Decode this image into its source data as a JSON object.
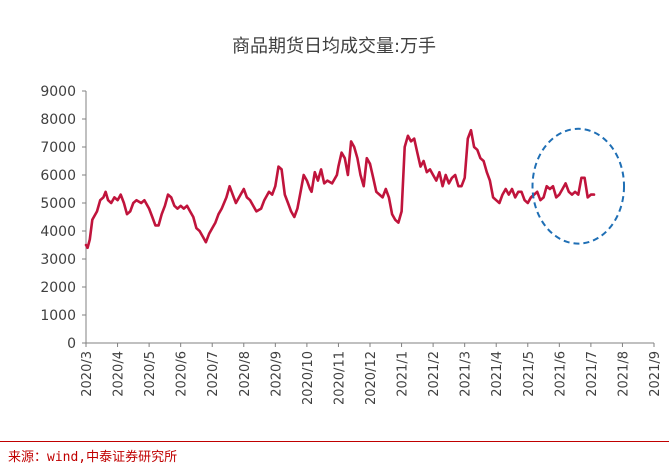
{
  "chart_data": {
    "type": "line",
    "title": "商品期货日均成交量:万手",
    "xlabel": "",
    "ylabel": "",
    "ylim": [
      0,
      9000
    ],
    "yticks": [
      0,
      1000,
      2000,
      3000,
      4000,
      5000,
      6000,
      7000,
      8000,
      9000
    ],
    "categories": [
      "2020/3",
      "2020/4",
      "2020/5",
      "2020/6",
      "2020/7",
      "2020/8",
      "2020/9",
      "2020/10",
      "2020/11",
      "2020/12",
      "2021/1",
      "2021/2",
      "2021/3",
      "2021/4",
      "2021/5",
      "2021/6",
      "2021/7",
      "2021/8",
      "2021/9"
    ],
    "series": [
      {
        "color": "#c0143c",
        "values": [
          [
            0.0,
            3500
          ],
          [
            0.05,
            3400
          ],
          [
            0.12,
            3700
          ],
          [
            0.2,
            4400
          ],
          [
            0.35,
            4700
          ],
          [
            0.45,
            5100
          ],
          [
            0.55,
            5200
          ],
          [
            0.62,
            5400
          ],
          [
            0.7,
            5100
          ],
          [
            0.8,
            5000
          ],
          [
            0.9,
            5200
          ],
          [
            1.0,
            5100
          ],
          [
            1.1,
            5300
          ],
          [
            1.2,
            5000
          ],
          [
            1.3,
            4600
          ],
          [
            1.4,
            4700
          ],
          [
            1.5,
            5000
          ],
          [
            1.6,
            5100
          ],
          [
            1.75,
            5000
          ],
          [
            1.85,
            5100
          ],
          [
            2.0,
            4800
          ],
          [
            2.1,
            4500
          ],
          [
            2.2,
            4200
          ],
          [
            2.3,
            4200
          ],
          [
            2.4,
            4600
          ],
          [
            2.5,
            4900
          ],
          [
            2.6,
            5300
          ],
          [
            2.7,
            5200
          ],
          [
            2.8,
            4900
          ],
          [
            2.9,
            4800
          ],
          [
            3.0,
            4900
          ],
          [
            3.1,
            4800
          ],
          [
            3.2,
            4900
          ],
          [
            3.3,
            4700
          ],
          [
            3.4,
            4500
          ],
          [
            3.5,
            4100
          ],
          [
            3.6,
            4000
          ],
          [
            3.7,
            3800
          ],
          [
            3.8,
            3600
          ],
          [
            3.9,
            3900
          ],
          [
            4.0,
            4100
          ],
          [
            4.1,
            4300
          ],
          [
            4.2,
            4600
          ],
          [
            4.3,
            4800
          ],
          [
            4.45,
            5200
          ],
          [
            4.55,
            5600
          ],
          [
            4.65,
            5300
          ],
          [
            4.75,
            5000
          ],
          [
            4.9,
            5300
          ],
          [
            5.0,
            5500
          ],
          [
            5.1,
            5200
          ],
          [
            5.2,
            5100
          ],
          [
            5.3,
            4900
          ],
          [
            5.4,
            4700
          ],
          [
            5.55,
            4800
          ],
          [
            5.65,
            5100
          ],
          [
            5.8,
            5400
          ],
          [
            5.9,
            5300
          ],
          [
            6.0,
            5600
          ],
          [
            6.1,
            6300
          ],
          [
            6.2,
            6200
          ],
          [
            6.3,
            5300
          ],
          [
            6.4,
            5000
          ],
          [
            6.5,
            4700
          ],
          [
            6.6,
            4500
          ],
          [
            6.7,
            4800
          ],
          [
            6.8,
            5400
          ],
          [
            6.9,
            6000
          ],
          [
            7.0,
            5800
          ],
          [
            7.1,
            5500
          ],
          [
            7.15,
            5400
          ],
          [
            7.25,
            6100
          ],
          [
            7.35,
            5800
          ],
          [
            7.45,
            6200
          ],
          [
            7.55,
            5700
          ],
          [
            7.65,
            5800
          ],
          [
            7.8,
            5700
          ],
          [
            7.95,
            6000
          ],
          [
            8.0,
            6300
          ],
          [
            8.1,
            6800
          ],
          [
            8.2,
            6600
          ],
          [
            8.3,
            6000
          ],
          [
            8.4,
            7200
          ],
          [
            8.5,
            7000
          ],
          [
            8.6,
            6600
          ],
          [
            8.7,
            6000
          ],
          [
            8.8,
            5600
          ],
          [
            8.9,
            6600
          ],
          [
            9.0,
            6400
          ],
          [
            9.1,
            5900
          ],
          [
            9.2,
            5400
          ],
          [
            9.3,
            5300
          ],
          [
            9.4,
            5200
          ],
          [
            9.5,
            5500
          ],
          [
            9.6,
            5200
          ],
          [
            9.7,
            4600
          ],
          [
            9.8,
            4400
          ],
          [
            9.9,
            4300
          ],
          [
            10.0,
            4700
          ],
          [
            10.1,
            7000
          ],
          [
            10.2,
            7400
          ],
          [
            10.3,
            7200
          ],
          [
            10.4,
            7300
          ],
          [
            10.5,
            6800
          ],
          [
            10.6,
            6300
          ],
          [
            10.7,
            6500
          ],
          [
            10.8,
            6100
          ],
          [
            10.9,
            6200
          ],
          [
            11.0,
            6000
          ],
          [
            11.1,
            5800
          ],
          [
            11.2,
            6100
          ],
          [
            11.3,
            5600
          ],
          [
            11.4,
            6000
          ],
          [
            11.5,
            5700
          ],
          [
            11.6,
            5900
          ],
          [
            11.7,
            6000
          ],
          [
            11.8,
            5600
          ],
          [
            11.9,
            5600
          ],
          [
            12.0,
            5900
          ],
          [
            12.1,
            7300
          ],
          [
            12.2,
            7600
          ],
          [
            12.3,
            7000
          ],
          [
            12.4,
            6900
          ],
          [
            12.5,
            6600
          ],
          [
            12.6,
            6500
          ],
          [
            12.7,
            6100
          ],
          [
            12.8,
            5800
          ],
          [
            12.9,
            5200
          ],
          [
            13.0,
            5100
          ],
          [
            13.1,
            5000
          ],
          [
            13.2,
            5300
          ],
          [
            13.3,
            5500
          ],
          [
            13.4,
            5300
          ],
          [
            13.5,
            5500
          ],
          [
            13.6,
            5200
          ],
          [
            13.7,
            5400
          ],
          [
            13.8,
            5400
          ],
          [
            13.9,
            5100
          ],
          [
            14.0,
            5000
          ],
          [
            14.1,
            5200
          ],
          [
            14.2,
            5300
          ],
          [
            14.3,
            5400
          ],
          [
            14.4,
            5100
          ],
          [
            14.5,
            5200
          ],
          [
            14.6,
            5600
          ],
          [
            14.7,
            5500
          ],
          [
            14.8,
            5600
          ],
          [
            14.9,
            5200
          ],
          [
            15.0,
            5300
          ],
          [
            15.1,
            5500
          ],
          [
            15.2,
            5700
          ],
          [
            15.3,
            5400
          ],
          [
            15.4,
            5300
          ],
          [
            15.5,
            5400
          ],
          [
            15.6,
            5300
          ],
          [
            15.7,
            5900
          ],
          [
            15.8,
            5900
          ],
          [
            15.9,
            5200
          ],
          [
            16.0,
            5300
          ],
          [
            16.1,
            5300
          ]
        ]
      }
    ],
    "annotation": {
      "shape": "dashed-ellipse",
      "color": "#1f6fb5",
      "x_center": 15.6,
      "y_center": 5600,
      "x_radius": 1.45,
      "y_radius": 2050
    },
    "grid": false,
    "legend": "none"
  },
  "source_text": "来源：wind,中泰证券研究所"
}
